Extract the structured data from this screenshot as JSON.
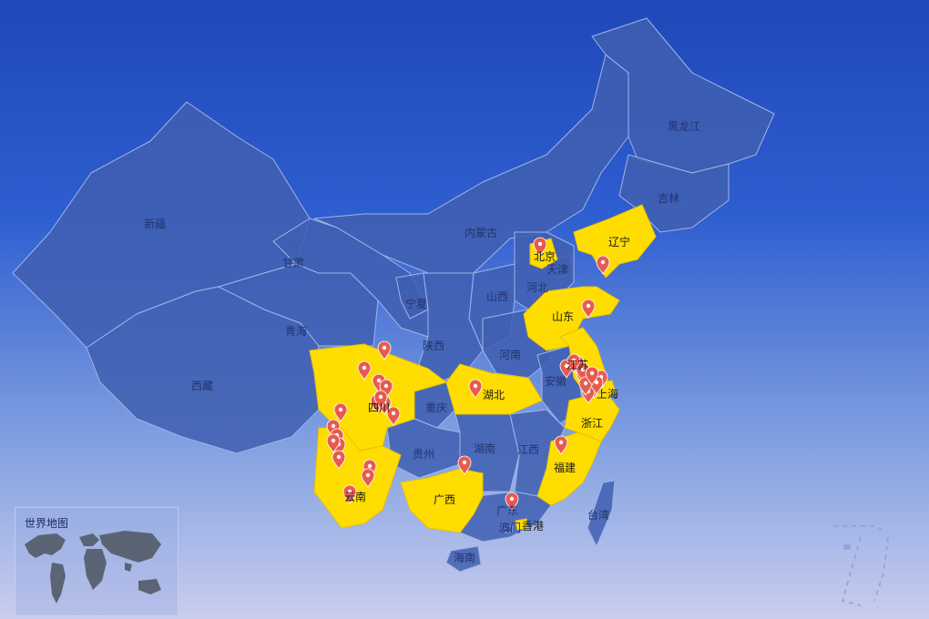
{
  "map": {
    "colors": {
      "base": "#3f5fb0",
      "highlight": "#ffdd00",
      "border": "#9fb4e8",
      "marker": "#e85a4f"
    },
    "provinces": [
      {
        "id": "xinjiang",
        "label": "新疆",
        "highlighted": false
      },
      {
        "id": "xizang",
        "label": "西藏",
        "highlighted": false
      },
      {
        "id": "qinghai",
        "label": "青海",
        "highlighted": false
      },
      {
        "id": "gansu",
        "label": "甘肃",
        "highlighted": false
      },
      {
        "id": "neimenggu",
        "label": "内蒙古",
        "highlighted": false
      },
      {
        "id": "heilongjiang",
        "label": "黑龙江",
        "highlighted": false
      },
      {
        "id": "jilin",
        "label": "吉林",
        "highlighted": false
      },
      {
        "id": "liaoning",
        "label": "辽宁",
        "highlighted": true
      },
      {
        "id": "beijing",
        "label": "北京",
        "highlighted": true
      },
      {
        "id": "tianjin",
        "label": "天津",
        "highlighted": false
      },
      {
        "id": "hebei",
        "label": "河北",
        "highlighted": false
      },
      {
        "id": "shanxi",
        "label": "山西",
        "highlighted": false
      },
      {
        "id": "ningxia",
        "label": "宁夏",
        "highlighted": false
      },
      {
        "id": "shaanxi",
        "label": "陕西",
        "highlighted": false
      },
      {
        "id": "shandong",
        "label": "山东",
        "highlighted": true
      },
      {
        "id": "henan",
        "label": "河南",
        "highlighted": false
      },
      {
        "id": "jiangsu",
        "label": "江苏",
        "highlighted": true
      },
      {
        "id": "anhui",
        "label": "安徽",
        "highlighted": false
      },
      {
        "id": "shanghai",
        "label": "上海",
        "highlighted": true
      },
      {
        "id": "hubei",
        "label": "湖北",
        "highlighted": true
      },
      {
        "id": "sichuan",
        "label": "四川",
        "highlighted": true
      },
      {
        "id": "chongqing",
        "label": "重庆",
        "highlighted": false
      },
      {
        "id": "zhejiang",
        "label": "浙江",
        "highlighted": true
      },
      {
        "id": "guizhou",
        "label": "贵州",
        "highlighted": false
      },
      {
        "id": "hunan",
        "label": "湖南",
        "highlighted": false
      },
      {
        "id": "jiangxi",
        "label": "江西",
        "highlighted": false
      },
      {
        "id": "fujian",
        "label": "福建",
        "highlighted": true
      },
      {
        "id": "yunnan",
        "label": "云南",
        "highlighted": true
      },
      {
        "id": "guangxi",
        "label": "广西",
        "highlighted": true
      },
      {
        "id": "guangdong",
        "label": "广东",
        "highlighted": false
      },
      {
        "id": "taiwan",
        "label": "台湾",
        "highlighted": false
      },
      {
        "id": "hainan",
        "label": "海南",
        "highlighted": false
      },
      {
        "id": "aomen",
        "label": "澳门",
        "highlighted": false
      },
      {
        "id": "xianggang",
        "label": "香港",
        "highlighted": true
      }
    ],
    "marker_count": 36
  },
  "minimap": {
    "title": "世界地图"
  }
}
